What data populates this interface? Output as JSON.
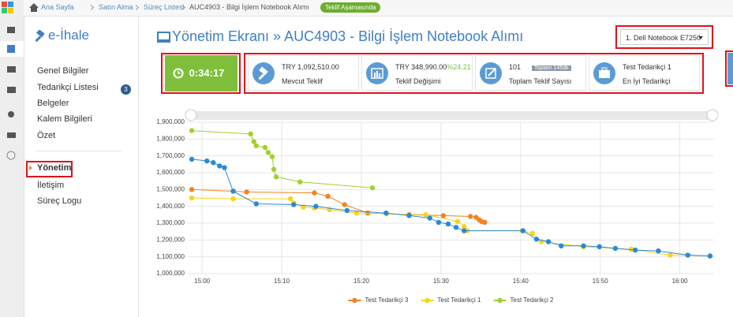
{
  "breadcrumb": {
    "items": [
      "Ana Sayfa",
      "Satın Alma",
      "Süreç Listesi",
      "AUC4903 - Bilgi İşlem Notebook Alımı"
    ],
    "status": "Teklif Aşamasında"
  },
  "sidebar": {
    "brand": "e-İhale",
    "items": [
      {
        "label": "Genel Bilgiler"
      },
      {
        "label": "Tedarikçi Listesi",
        "badge": 3
      },
      {
        "label": "Belgeler"
      },
      {
        "label": "Kalem Bilgileri"
      },
      {
        "label": "Özet"
      }
    ],
    "items2": [
      {
        "label": "Yönetim"
      },
      {
        "label": "İletişim"
      },
      {
        "label": "Süreç Logu"
      }
    ]
  },
  "header": {
    "title": "Yönetim Ekranı » AUC4903 - Bilgi İşlem Notebook Alımı",
    "dropdown": "1. Dell Notebook E7250"
  },
  "timer": "0:34:17",
  "stats": [
    {
      "value": "TRY 1,092,510.00",
      "label": "Mevcut Teklif"
    },
    {
      "value": "TRY 348,990.00",
      "extra": "%24.21",
      "label": "Teklif Değişimi"
    },
    {
      "value": "101",
      "badge": "Toplam 145dk",
      "label": "Toplam Teklif Sayısı"
    },
    {
      "value": "Test Tedarikçi 1",
      "label": "En İyi Tedarikçi"
    }
  ],
  "chart_data": {
    "type": "line",
    "xlim": [
      898.2,
      964.3
    ],
    "xticks": [
      {
        "value": 900,
        "label": "15:00"
      },
      {
        "value": 910,
        "label": "15:10"
      },
      {
        "value": 920,
        "label": "15:20"
      },
      {
        "value": 930,
        "label": "15:30"
      },
      {
        "value": 940,
        "label": "15:40"
      },
      {
        "value": 950,
        "label": "15:50"
      },
      {
        "value": 960,
        "label": "16:00"
      }
    ],
    "ylim": [
      1000000,
      1900000
    ],
    "yticks": [
      {
        "value": 1000000,
        "label": "1,000,000"
      },
      {
        "value": 1100000,
        "label": "1,100,000"
      },
      {
        "value": 1200000,
        "label": "1,200,000"
      },
      {
        "value": 1300000,
        "label": "1,300,000"
      },
      {
        "value": 1400000,
        "label": "1,400,000"
      },
      {
        "value": 1500000,
        "label": "1,500,000"
      },
      {
        "value": 1600000,
        "label": "1,600,000"
      },
      {
        "value": 1700000,
        "label": "1,700,000"
      },
      {
        "value": 1800000,
        "label": "1,800,000"
      },
      {
        "value": 1900000,
        "label": "1,900,000"
      }
    ],
    "grid": true,
    "series": [
      {
        "name": "Test Tedarikçi 3",
        "color": "#f5821f",
        "x": [
          898.7,
          903.9,
          905.6,
          914.1,
          915.8,
          917.9,
          920.8,
          926.0,
          930.3,
          933.7,
          934.4,
          934.8,
          935.1,
          935.5
        ],
        "values": [
          1500000,
          1490000,
          1485000,
          1480000,
          1460000,
          1410000,
          1360000,
          1350000,
          1345000,
          1340000,
          1335000,
          1320000,
          1310000,
          1305000
        ]
      },
      {
        "name": "Test Tedarikçi 1",
        "color": "#f9d21c",
        "x": [
          898.7,
          903.9,
          911.1,
          911.5,
          912.7,
          914.1,
          916.0,
          919.4,
          923.2,
          928.1,
          932.1,
          932.9,
          933.3,
          940.2,
          941.5,
          942.6,
          947.9,
          953.9,
          958.8,
          963.8
        ],
        "values": [
          1450000,
          1445000,
          1445000,
          1420000,
          1395000,
          1390000,
          1380000,
          1360000,
          1355000,
          1350000,
          1310000,
          1280000,
          1255000,
          1255000,
          1240000,
          1190000,
          1160000,
          1145000,
          1110000,
          1105000
        ]
      },
      {
        "name": "Test Tedarikçi 2",
        "color": "#a0d12e",
        "x": [
          898.7,
          906.1,
          906.5,
          906.8,
          907.9,
          908.3,
          908.8,
          909.0,
          909.3,
          912.3,
          921.4
        ],
        "values": [
          1850000,
          1830000,
          1785000,
          1760000,
          1750000,
          1720000,
          1695000,
          1620000,
          1575000,
          1545000,
          1510000
        ]
      },
      {
        "color": "#2a8ad4",
        "x": [
          898.7,
          900.6,
          901.4,
          902.2,
          902.8,
          903.9,
          906.8,
          911.5,
          914.3,
          918.2,
          923.1,
          926.0,
          928.6,
          929.7,
          930.9,
          931.9,
          932.9,
          940.3,
          942.0,
          943.5,
          945.1,
          947.9,
          949.9,
          951.9,
          954.4,
          957.3,
          961.0,
          963.8
        ],
        "values": [
          1680000,
          1670000,
          1660000,
          1640000,
          1630000,
          1490000,
          1415000,
          1410000,
          1400000,
          1375000,
          1360000,
          1345000,
          1330000,
          1305000,
          1295000,
          1275000,
          1255000,
          1255000,
          1205000,
          1190000,
          1165000,
          1165000,
          1160000,
          1150000,
          1140000,
          1135000,
          1110000,
          1105000
        ]
      }
    ]
  }
}
